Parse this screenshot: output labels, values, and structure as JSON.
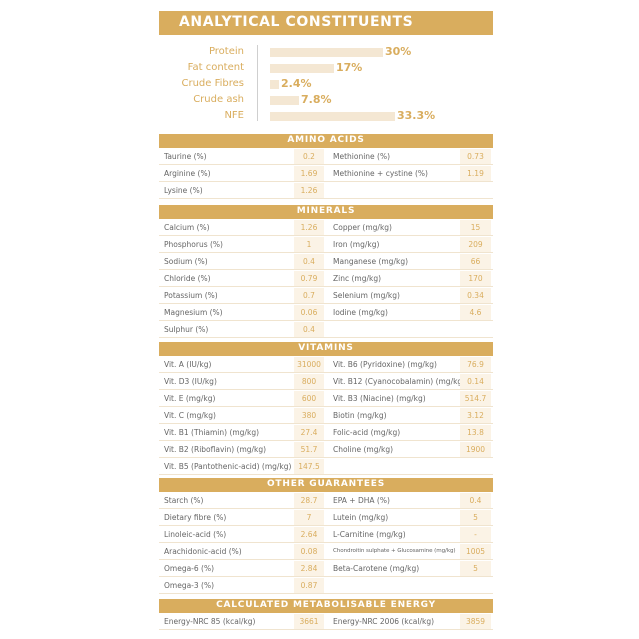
{
  "header": {
    "title": "ANALYTICAL CONSTITUENTS"
  },
  "bars": [
    {
      "label": "Protein",
      "value": "30%",
      "fraction": 0.3
    },
    {
      "label": "Fat content",
      "value": "17%",
      "fraction": 0.17
    },
    {
      "label": "Crude Fibres",
      "value": "2.4%",
      "fraction": 0.024
    },
    {
      "label": "Crude ash",
      "value": "7.8%",
      "fraction": 0.078
    },
    {
      "label": "NFE",
      "value": "33.3%",
      "fraction": 0.333
    }
  ],
  "sections": [
    {
      "title": "AMINO ACIDS",
      "rows": [
        [
          {
            "label": "Taurine (%)",
            "value": "0.2"
          },
          {
            "label": "Methionine (%)",
            "value": "0.73"
          }
        ],
        [
          {
            "label": "Arginine (%)",
            "value": "1.69"
          },
          {
            "label": "Methionine + cystine (%)",
            "value": "1.19"
          }
        ],
        [
          {
            "label": "Lysine (%)",
            "value": "1.26"
          },
          null
        ]
      ]
    },
    {
      "title": "MINERALS",
      "rows": [
        [
          {
            "label": "Calcium (%)",
            "value": "1.26"
          },
          {
            "label": "Copper (mg/kg)",
            "value": "15"
          }
        ],
        [
          {
            "label": "Phosphorus (%)",
            "value": "1"
          },
          {
            "label": "Iron (mg/kg)",
            "value": "209"
          }
        ],
        [
          {
            "label": "Sodium (%)",
            "value": "0.4"
          },
          {
            "label": "Manganese (mg/kg)",
            "value": "66"
          }
        ],
        [
          {
            "label": "Chloride (%)",
            "value": "0.79"
          },
          {
            "label": "Zinc (mg/kg)",
            "value": "170"
          }
        ],
        [
          {
            "label": "Potassium (%)",
            "value": "0.7"
          },
          {
            "label": "Selenium (mg/kg)",
            "value": "0.34"
          }
        ],
        [
          {
            "label": "Magnesium (%)",
            "value": "0.06"
          },
          {
            "label": "Iodine (mg/kg)",
            "value": "4.6"
          }
        ],
        [
          {
            "label": "Sulphur (%)",
            "value": "0.4"
          },
          null
        ]
      ]
    },
    {
      "title": "VITAMINS",
      "rows": [
        [
          {
            "label": "Vit. A (IU/kg)",
            "value": "31000"
          },
          {
            "label": "Vit. B6 (Pyridoxine) (mg/kg)",
            "value": "76.9"
          }
        ],
        [
          {
            "label": "Vit. D3 (IU/kg)",
            "value": "800"
          },
          {
            "label": "Vit. B12 (Cyanocobalamin) (mg/kg)",
            "value": "0.14"
          }
        ],
        [
          {
            "label": "Vit. E (mg/kg)",
            "value": "600"
          },
          {
            "label": "Vit. B3 (Niacine) (mg/kg)",
            "value": "514.7"
          }
        ],
        [
          {
            "label": "Vit. C (mg/kg)",
            "value": "380"
          },
          {
            "label": "Biotin (mg/kg)",
            "value": "3.12"
          }
        ],
        [
          {
            "label": "Vit. B1 (Thiamin) (mg/kg)",
            "value": "27.4"
          },
          {
            "label": "Folic-acid (mg/kg)",
            "value": "13.8"
          }
        ],
        [
          {
            "label": "Vit. B2 (Riboflavin) (mg/kg)",
            "value": "51.7"
          },
          {
            "label": "Choline (mg/kg)",
            "value": "1900"
          }
        ],
        [
          {
            "label": "Vit. B5 (Pantothenic-acid) (mg/kg)",
            "value": "147.5"
          },
          null
        ]
      ]
    },
    {
      "title": "OTHER GUARANTEES",
      "rows": [
        [
          {
            "label": "Starch (%)",
            "value": "28.7"
          },
          {
            "label": "EPA + DHA (%)",
            "value": "0.4"
          }
        ],
        [
          {
            "label": "Dietary fibre (%)",
            "value": "7"
          },
          {
            "label": "Lutein (mg/kg)",
            "value": "5"
          }
        ],
        [
          {
            "label": "Linoleic-acid (%)",
            "value": "2.64"
          },
          {
            "label": "L-Carnitine (mg/kg)",
            "value": "-"
          }
        ],
        [
          {
            "label": "Arachidonic-acid (%)",
            "value": "0.08"
          },
          {
            "label": "Chondroitin sulphate + Glucosamine (mg/kg)",
            "value": "1005",
            "small": true
          }
        ],
        [
          {
            "label": "Omega-6 (%)",
            "value": "2.84"
          },
          {
            "label": "Beta-Carotene (mg/kg)",
            "value": "5"
          }
        ],
        [
          {
            "label": "Omega-3 (%)",
            "value": "0.87"
          },
          null
        ]
      ]
    },
    {
      "title": "CALCULATED METABOLISABLE ENERGY",
      "rows": [
        [
          {
            "label": "Energy-NRC 85 (kcal/kg)",
            "value": "3661"
          },
          {
            "label": "Energy-NRC 2006 (kcal/kg)",
            "value": "3859"
          }
        ]
      ]
    }
  ]
}
